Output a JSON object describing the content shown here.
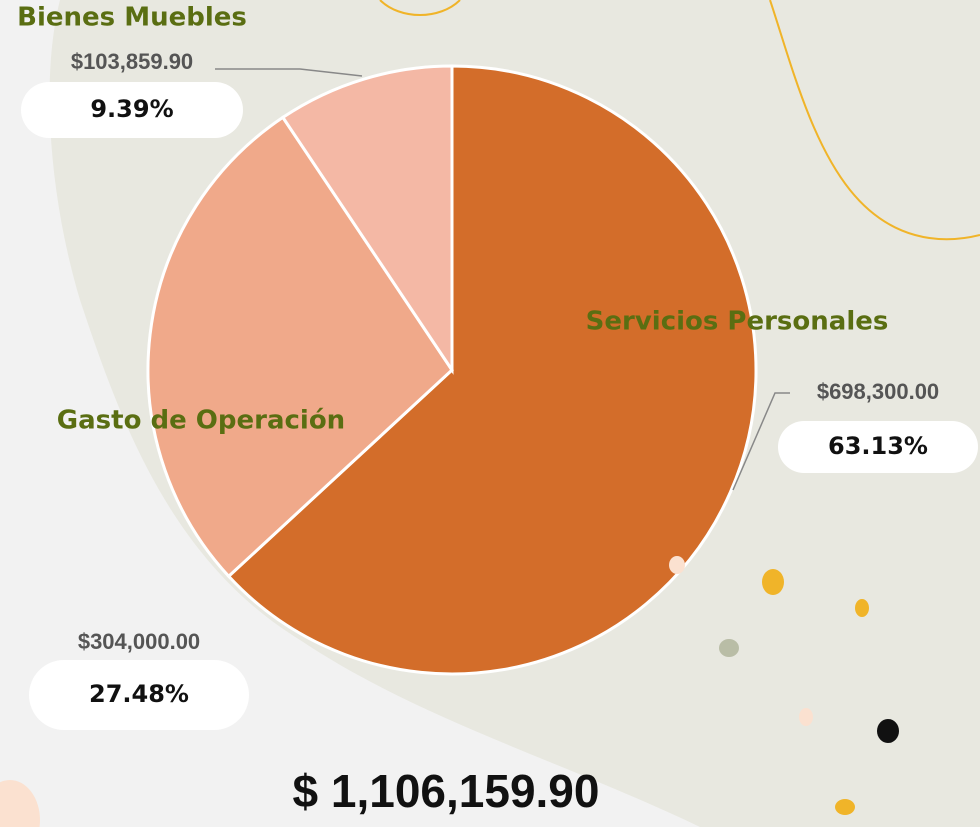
{
  "chart_data": {
    "type": "pie",
    "categories": [
      "Servicios Personales",
      "Gasto de Operación",
      "Bienes Muebles"
    ],
    "values": [
      63.13,
      27.48,
      9.39
    ],
    "value_labels": [
      "63.13%",
      "27.48%",
      "9.39%"
    ],
    "amounts": [
      698300.0,
      304000.0,
      103859.9
    ],
    "amount_labels": [
      "$698,300.00",
      "$304,000.00",
      "$103,859.90"
    ],
    "colors": [
      "#d36d2a",
      "#f0a98a",
      "#f4b8a5"
    ],
    "total": 1106159.9,
    "total_label": "$  1,106,159.90"
  }
}
